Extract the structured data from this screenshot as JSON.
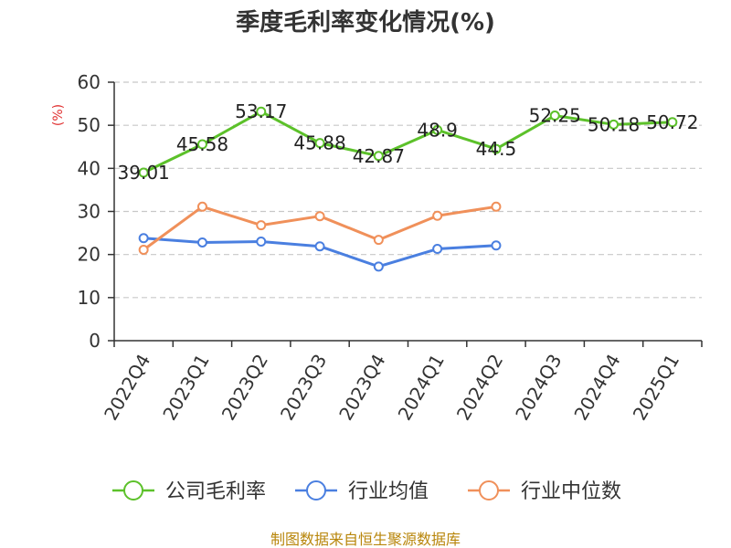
{
  "chart_data": {
    "type": "line",
    "title": "季度毛利率变化情况(%)",
    "ylabel": "(%)",
    "xlabel": "",
    "ylim": [
      0,
      60
    ],
    "yticks": [
      0,
      10,
      20,
      30,
      40,
      50,
      60
    ],
    "grid": true,
    "legend_position": "bottom",
    "categories": [
      "2022Q4",
      "2023Q1",
      "2023Q2",
      "2023Q3",
      "2023Q4",
      "2024Q1",
      "2024Q2",
      "2024Q3",
      "2024Q4",
      "2025Q1"
    ],
    "series": [
      {
        "name": "公司毛利率",
        "color": "#5cc12a",
        "labels": true,
        "values": [
          39.01,
          45.58,
          53.17,
          45.88,
          42.87,
          48.9,
          44.5,
          52.25,
          50.18,
          50.72
        ]
      },
      {
        "name": "行业均值",
        "color": "#4a7fe0",
        "labels": false,
        "values": [
          23.8,
          22.8,
          23.0,
          21.9,
          17.2,
          21.3,
          22.1,
          null,
          null,
          null
        ]
      },
      {
        "name": "行业中位数",
        "color": "#f0905a",
        "labels": false,
        "values": [
          21.1,
          31.1,
          26.8,
          28.9,
          23.4,
          29.0,
          31.1,
          null,
          null,
          null
        ]
      }
    ],
    "source": "制图数据来自恒生聚源数据库"
  }
}
